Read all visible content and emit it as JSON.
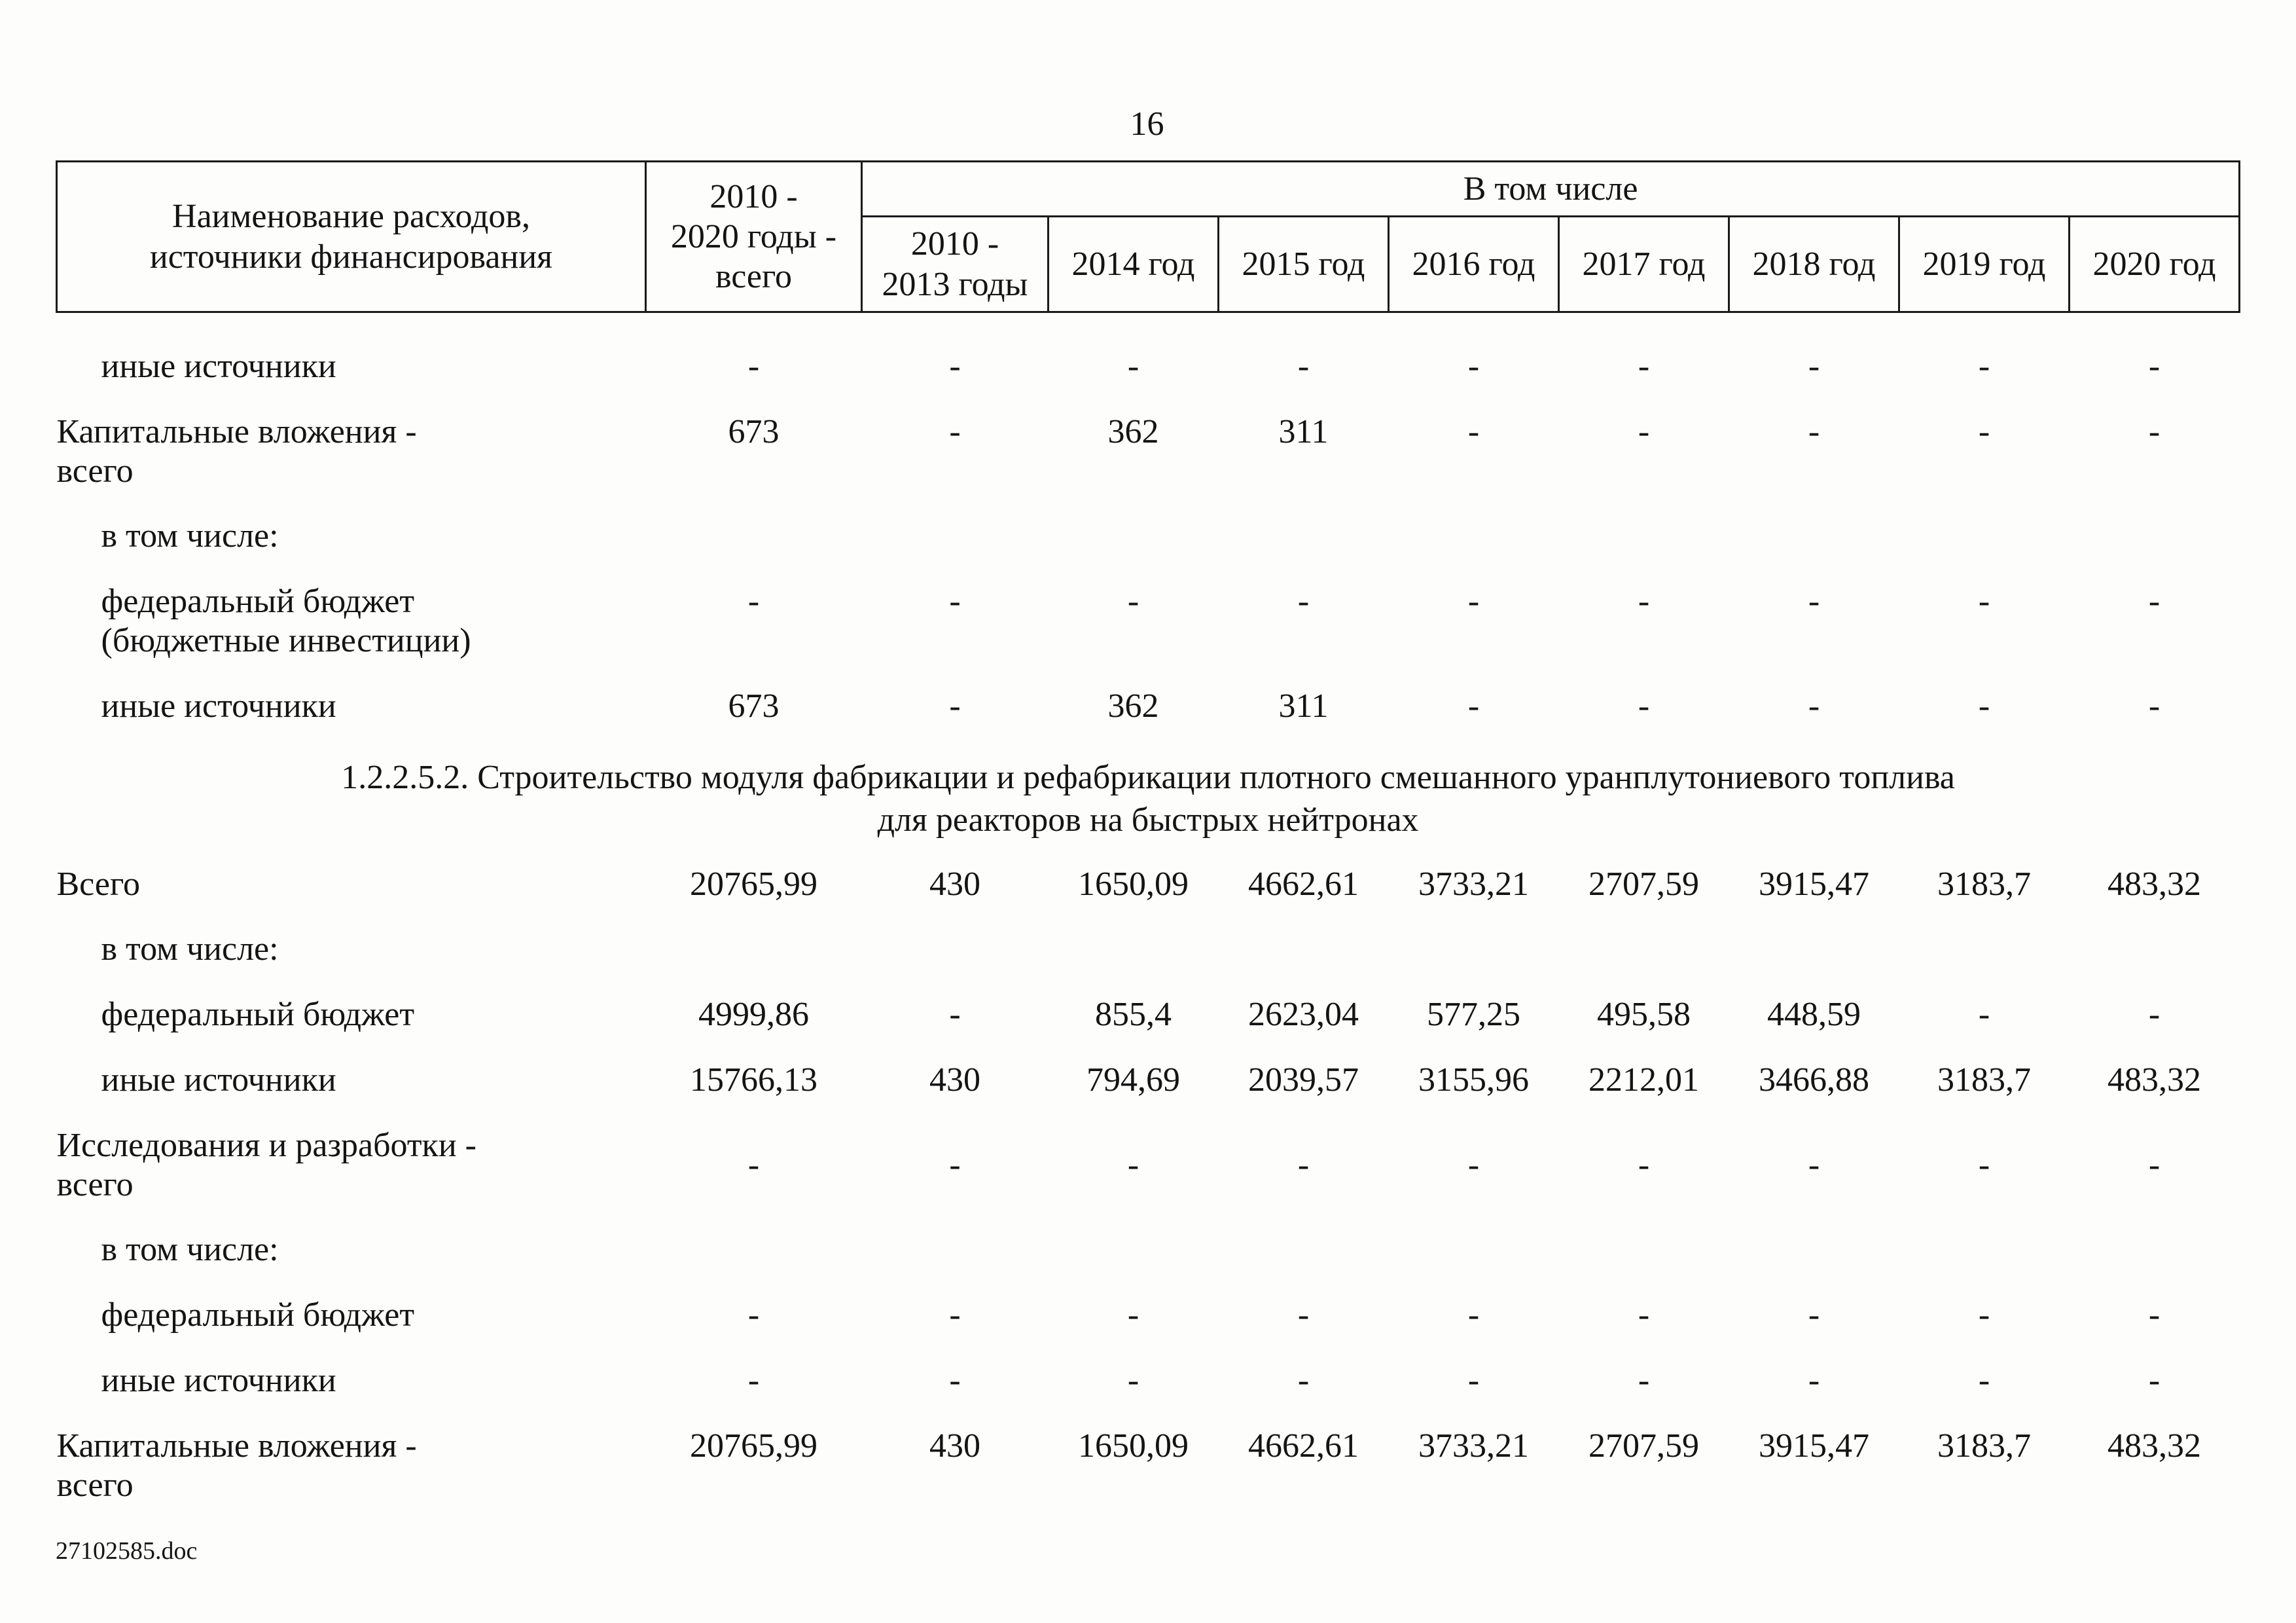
{
  "page": {
    "number": "16"
  },
  "footer": {
    "filename": "27102585.doc"
  },
  "table": {
    "header": {
      "name_col": "Наименование расходов,\nисточники финансирования",
      "total_col": "2010 -\n2020 годы -\nвсего",
      "group": "В том числе",
      "years": [
        "2010 -\n2013 годы",
        "2014 год",
        "2015 год",
        "2016 год",
        "2017 год",
        "2018 год",
        "2019 год",
        "2020 год"
      ]
    },
    "rows": [
      {
        "type": "data",
        "label": "иные источники",
        "indent": 1,
        "values": [
          "-",
          "-",
          "-",
          "-",
          "-",
          "-",
          "-",
          "-",
          "-"
        ]
      },
      {
        "type": "data",
        "label": "Капитальные вложения -\nвсего",
        "indent": 0,
        "values": [
          "673",
          "-",
          "362",
          "311",
          "-",
          "-",
          "-",
          "-",
          "-"
        ]
      },
      {
        "type": "data",
        "label": "в том числе:",
        "indent": 1,
        "values": [
          "",
          "",
          "",
          "",
          "",
          "",
          "",
          "",
          ""
        ]
      },
      {
        "type": "data",
        "label": "федеральный бюджет\n(бюджетные инвестиции)",
        "indent": 1,
        "values": [
          "-",
          "-",
          "-",
          "-",
          "-",
          "-",
          "-",
          "-",
          "-"
        ]
      },
      {
        "type": "data",
        "label": "иные источники",
        "indent": 1,
        "values": [
          "673",
          "-",
          "362",
          "311",
          "-",
          "-",
          "-",
          "-",
          "-"
        ]
      },
      {
        "type": "section",
        "label": "1.2.2.5.2. Строительство модуля фабрикации и рефабрикации плотного смешанного уранплутониевого топлива\nдля реакторов на быстрых нейтронах"
      },
      {
        "type": "data",
        "label": "Всего",
        "indent": 0,
        "values": [
          "20765,99",
          "430",
          "1650,09",
          "4662,61",
          "3733,21",
          "2707,59",
          "3915,47",
          "3183,7",
          "483,32"
        ]
      },
      {
        "type": "data",
        "label": "в том числе:",
        "indent": 1,
        "values": [
          "",
          "",
          "",
          "",
          "",
          "",
          "",
          "",
          ""
        ]
      },
      {
        "type": "data",
        "label": "федеральный бюджет",
        "indent": 1,
        "values": [
          "4999,86",
          "-",
          "855,4",
          "2623,04",
          "577,25",
          "495,58",
          "448,59",
          "-",
          "-"
        ]
      },
      {
        "type": "data",
        "label": "иные источники",
        "indent": 1,
        "values": [
          "15766,13",
          "430",
          "794,69",
          "2039,57",
          "3155,96",
          "2212,01",
          "3466,88",
          "3183,7",
          "483,32"
        ]
      },
      {
        "type": "data",
        "label": "Исследования и разработки -\nвсего",
        "indent": 0,
        "valign": "middle",
        "values": [
          "-",
          "-",
          "-",
          "-",
          "-",
          "-",
          "-",
          "-",
          "-"
        ]
      },
      {
        "type": "data",
        "label": "в том числе:",
        "indent": 1,
        "values": [
          "",
          "",
          "",
          "",
          "",
          "",
          "",
          "",
          ""
        ]
      },
      {
        "type": "data",
        "label": "федеральный бюджет",
        "indent": 1,
        "values": [
          "-",
          "-",
          "-",
          "-",
          "-",
          "-",
          "-",
          "-",
          "-"
        ]
      },
      {
        "type": "data",
        "label": "иные источники",
        "indent": 1,
        "values": [
          "-",
          "-",
          "-",
          "-",
          "-",
          "-",
          "-",
          "-",
          "-"
        ]
      },
      {
        "type": "data",
        "label": "Капитальные вложения -\nвсего",
        "indent": 0,
        "values": [
          "20765,99",
          "430",
          "1650,09",
          "4662,61",
          "3733,21",
          "2707,59",
          "3915,47",
          "3183,7",
          "483,32"
        ]
      }
    ]
  }
}
